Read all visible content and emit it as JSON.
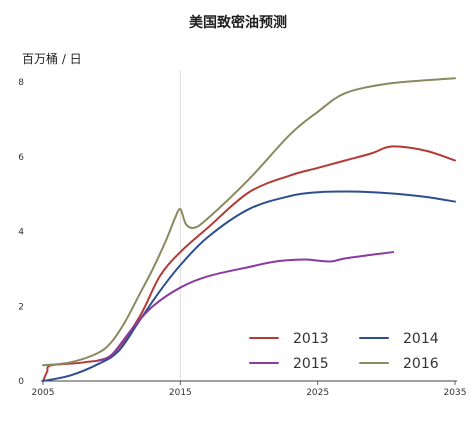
{
  "chart_data": {
    "type": "line",
    "title": "美国致密油预测",
    "ylabel": "百万桶 / 日",
    "xlabel": "",
    "xlim": [
      2005,
      2035
    ],
    "ylim": [
      0,
      8
    ],
    "xticks": [
      2005,
      2015,
      2025,
      2035
    ],
    "yticks": [
      0,
      2,
      4,
      6,
      8
    ],
    "grid": false,
    "reference_line_x": 2015,
    "legend": {
      "placement": "bottom-right",
      "entries": [
        "2013",
        "2014",
        "2015",
        "2016"
      ]
    },
    "series": [
      {
        "name": "2013",
        "color": "#b43a36",
        "points": [
          [
            2005,
            0
          ],
          [
            2005.3,
            0.25
          ],
          [
            2005.6,
            0.42
          ],
          [
            2008,
            0.5
          ],
          [
            2010,
            0.7
          ],
          [
            2012,
            1.7
          ],
          [
            2013.5,
            2.8
          ],
          [
            2015,
            3.45
          ],
          [
            2017,
            4.1
          ],
          [
            2020,
            5.05
          ],
          [
            2023,
            5.5
          ],
          [
            2025,
            5.7
          ],
          [
            2027,
            5.9
          ],
          [
            2029,
            6.1
          ],
          [
            2030,
            6.25
          ],
          [
            2031,
            6.27
          ],
          [
            2033,
            6.15
          ],
          [
            2035,
            5.9
          ]
        ]
      },
      {
        "name": "2014",
        "color": "#2e4f8f",
        "points": [
          [
            2005,
            0
          ],
          [
            2007,
            0.15
          ],
          [
            2009,
            0.45
          ],
          [
            2010.5,
            0.8
          ],
          [
            2012,
            1.6
          ],
          [
            2013.5,
            2.4
          ],
          [
            2015,
            3.1
          ],
          [
            2017,
            3.85
          ],
          [
            2020,
            4.6
          ],
          [
            2023,
            4.95
          ],
          [
            2025,
            5.05
          ],
          [
            2027,
            5.07
          ],
          [
            2029,
            5.05
          ],
          [
            2031,
            5.0
          ],
          [
            2033,
            4.92
          ],
          [
            2035,
            4.8
          ]
        ]
      },
      {
        "name": "2015",
        "color": "#8a3aa0",
        "points": [
          [
            2009,
            0.55
          ],
          [
            2010,
            0.7
          ],
          [
            2011.5,
            1.4
          ],
          [
            2013,
            2.0
          ],
          [
            2015,
            2.5
          ],
          [
            2017,
            2.8
          ],
          [
            2020,
            3.05
          ],
          [
            2022,
            3.2
          ],
          [
            2024,
            3.25
          ],
          [
            2025,
            3.22
          ],
          [
            2026,
            3.2
          ],
          [
            2027,
            3.28
          ],
          [
            2029,
            3.38
          ],
          [
            2030.5,
            3.45
          ]
        ]
      },
      {
        "name": "2016",
        "color": "#8a8a60",
        "points": [
          [
            2005,
            0.42
          ],
          [
            2007,
            0.5
          ],
          [
            2009,
            0.75
          ],
          [
            2010,
            1.05
          ],
          [
            2011,
            1.6
          ],
          [
            2012,
            2.3
          ],
          [
            2013,
            3.0
          ],
          [
            2014,
            3.8
          ],
          [
            2014.6,
            4.35
          ],
          [
            2015,
            4.6
          ],
          [
            2015.4,
            4.2
          ],
          [
            2016,
            4.1
          ],
          [
            2017,
            4.35
          ],
          [
            2020,
            5.4
          ],
          [
            2023,
            6.6
          ],
          [
            2025,
            7.2
          ],
          [
            2027,
            7.7
          ],
          [
            2030,
            7.95
          ],
          [
            2033,
            8.05
          ],
          [
            2035,
            8.1
          ]
        ]
      }
    ]
  }
}
